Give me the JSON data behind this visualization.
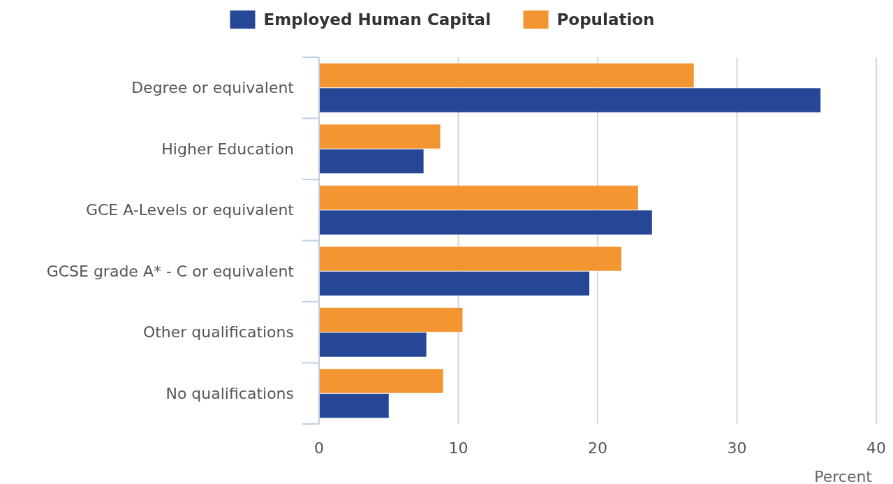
{
  "chart_data": {
    "type": "bar",
    "orientation": "horizontal",
    "categories": [
      "Degree or equivalent",
      "Higher Education",
      "GCE A-Levels or equivalent",
      "GCSE grade A* - C or equivalent",
      "Other qualifications",
      "No qualifications"
    ],
    "series": [
      {
        "name": "Employed Human Capital",
        "color": "#264796",
        "values": [
          36.0,
          7.5,
          23.9,
          19.4,
          7.7,
          5.0
        ]
      },
      {
        "name": "Population",
        "color": "#f39530",
        "values": [
          26.9,
          8.7,
          22.9,
          21.7,
          10.3,
          8.9
        ]
      }
    ],
    "xlim": [
      0,
      40
    ],
    "xticks": [
      0,
      10,
      20,
      30,
      40
    ],
    "xlabel": "Percent",
    "grid": "x",
    "legend": "top"
  }
}
